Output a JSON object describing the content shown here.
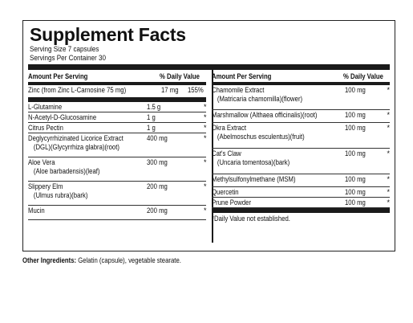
{
  "title": "Supplement Facts",
  "serving_size": "Serving Size 7 capsules",
  "servings_per_container": "Servings Per Container 30",
  "left": {
    "header_amount": "Amount Per Serving",
    "header_dv": "% Daily Value",
    "zinc": {
      "name": "Zinc (from Zinc L-Carnosine 75 mg)",
      "amount": "17 mg",
      "dv": "155%"
    },
    "rows": [
      {
        "line1": "L-Glutamine",
        "line2": "",
        "amount": "1.5 g",
        "dv": "*"
      },
      {
        "line1": "N-Acetyl-D-Glucosamine",
        "line2": "",
        "amount": "1 g",
        "dv": "*"
      },
      {
        "line1": "Citrus Pectin",
        "line2": "",
        "amount": "1 g",
        "dv": "*"
      },
      {
        "line1": "Deglycyrrhizinated Licorice Extract",
        "line2": "(DGL)(Glycyrrhiza glabra)(root)",
        "amount": "400 mg",
        "dv": "*"
      },
      {
        "line1": "Aloe Vera",
        "line2": "(Aloe barbadensis)(leaf)",
        "amount": "300 mg",
        "dv": "*"
      },
      {
        "line1": "Slippery Elm",
        "line2": "(Ulmus rubra)(bark)",
        "amount": "200 mg",
        "dv": "*"
      },
      {
        "line1": "Mucin",
        "line2": "",
        "amount": "200 mg",
        "dv": "*"
      }
    ]
  },
  "right": {
    "header_amount": "Amount Per Serving",
    "header_dv": "% Daily Value",
    "rows": [
      {
        "line1": "Chamomile Extract",
        "line2": "(Matricaria chamomilla)(flower)",
        "amount": "100 mg",
        "dv": "*"
      },
      {
        "line1": "Marshmallow (Althaea officinalis)(root)",
        "line2": "",
        "amount": "100 mg",
        "dv": "*"
      },
      {
        "line1": "Okra Extract",
        "line2": "(Abelmoschus esculentus)(fruit)",
        "amount": "100 mg",
        "dv": "*"
      },
      {
        "line1": "Cat's Claw",
        "line2": "(Uncaria tomentosa)(bark)",
        "amount": "100 mg",
        "dv": "*"
      },
      {
        "line1": "Methylsulfonylmethane (MSM)",
        "line2": "",
        "amount": "100 mg",
        "dv": "*"
      },
      {
        "line1": "Quercetin",
        "line2": "",
        "amount": "100 mg",
        "dv": "*"
      },
      {
        "line1": "Prune Powder",
        "line2": "",
        "amount": "100 mg",
        "dv": "*"
      }
    ],
    "footnote": "*Daily Value not established."
  },
  "other_ingredients": {
    "label": "Other Ingredients:",
    "text": "Gelatin (capsule), vegetable stearate."
  }
}
